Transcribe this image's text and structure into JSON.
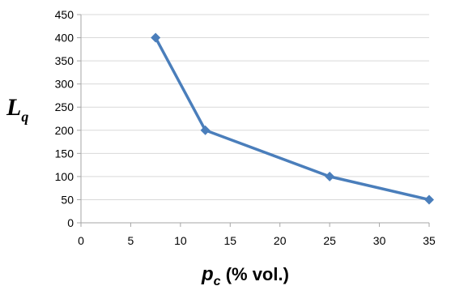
{
  "chart_data": {
    "type": "line",
    "x": [
      7.5,
      12.5,
      25,
      35
    ],
    "series": [
      {
        "values": [
          400,
          200,
          100,
          50
        ]
      }
    ],
    "xlim": [
      0,
      35
    ],
    "ylim": [
      0,
      450
    ],
    "xticks": [
      0,
      5,
      10,
      15,
      20,
      25,
      30,
      35
    ],
    "yticks": [
      0,
      50,
      100,
      150,
      200,
      250,
      300,
      350,
      400,
      450
    ],
    "ylabel": {
      "main": "L",
      "sub": "q"
    },
    "xlabel": {
      "main": "p",
      "sub": "c",
      "rest": " (% vol.)"
    },
    "grid": "horizontal",
    "marker": "diamond",
    "colors": {
      "series": "#4a7ebb",
      "grid": "#d9d9d9",
      "axis": "#a6a6a6"
    }
  }
}
